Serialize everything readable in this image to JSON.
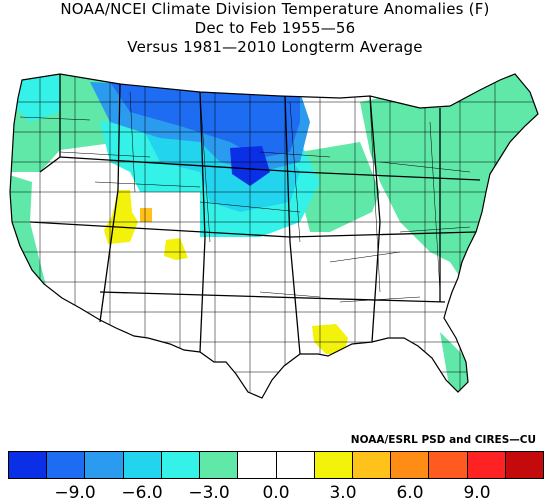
{
  "title": {
    "line1": "NOAA/NCEI Climate Division Temperature Anomalies (F)",
    "line2": "Dec to Feb 1955—56",
    "line3": "Versus 1981—2010 Longterm Average"
  },
  "credit": "NOAA/ESRL PSD and CIRES—CU",
  "legend": {
    "colors": [
      "#0a2fe6",
      "#1e6cf2",
      "#2b9bf0",
      "#22d4ee",
      "#34f2e8",
      "#5fe8a8",
      "#ffffff",
      "#ffffff",
      "#f2f20a",
      "#ffc21a",
      "#ff8c14",
      "#ff5a1f",
      "#ff2222",
      "#c40a0a"
    ],
    "tick_labels": [
      "−9.0",
      "−6.0",
      "−3.0",
      "0.0",
      "3.0",
      "6.0",
      "9.0"
    ],
    "tick_values": [
      -9,
      -6,
      -3,
      0,
      3,
      6,
      9
    ],
    "range": [
      -12,
      12
    ]
  },
  "map_colors": {
    "land": "#ffffff",
    "neg_1_5": "#5fe8a8",
    "neg_3": "#34f2e8",
    "neg_4_5": "#22d4ee",
    "neg_6": "#2b9bf0",
    "neg_7_5": "#1e6cf2",
    "neg_9": "#0a2fe6",
    "pos_1_5": "#f2f20a",
    "pos_3": "#ffc21a"
  }
}
